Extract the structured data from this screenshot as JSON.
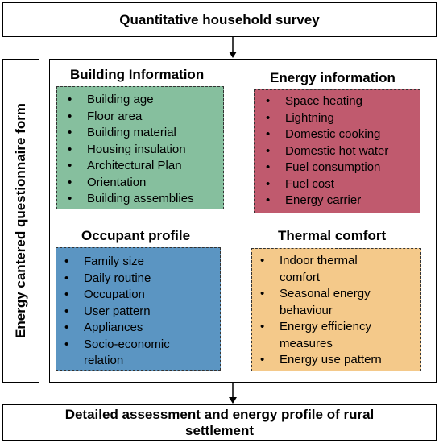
{
  "top_title": "Quantitative household survey",
  "side_label": "Energy cantered questionnaire form",
  "sections": {
    "building": {
      "title": "Building Information",
      "items": [
        "Building age",
        "Floor area",
        "Building material",
        "Housing insulation",
        "Architectural Plan",
        "Orientation",
        "Building assemblies"
      ],
      "color": "#86bf9e"
    },
    "energy": {
      "title": "Energy information",
      "items": [
        "Space heating",
        "Lightning",
        "Domestic cooking",
        "Domestic hot water",
        "Fuel consumption",
        "Fuel cost",
        "Energy carrier"
      ],
      "color": "#c05a6e"
    },
    "occupant": {
      "title": "Occupant profile",
      "items": [
        "Family size",
        "Daily routine",
        "Occupation",
        "User pattern",
        "Appliances",
        "Socio-economic",
        "relation"
      ],
      "color": "#5b95c2"
    },
    "thermal": {
      "title": "Thermal comfort",
      "items": [
        "Indoor thermal",
        "comfort",
        "Seasonal energy",
        "behaviour",
        "Energy efficiency",
        "measures",
        "Energy use pattern"
      ],
      "color": "#f4c98a"
    }
  },
  "bottom_title": {
    "line1": "Detailed assessment and energy profile of rural",
    "line2": "settlement"
  }
}
